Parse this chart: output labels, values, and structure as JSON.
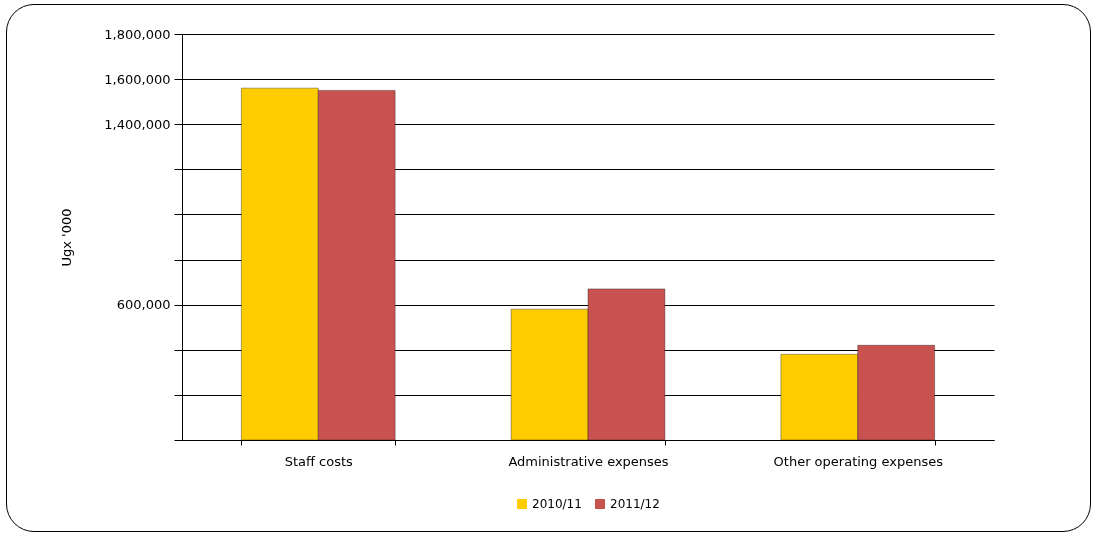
{
  "chart_data": {
    "type": "bar",
    "ylabel": "Ugx '000",
    "categories": [
      "Staff costs",
      "Administrative expenses",
      "Other operating expenses"
    ],
    "series": [
      {
        "name": "2010/11",
        "color": "#ffcc00",
        "values": [
          1560000,
          580000,
          380000
        ]
      },
      {
        "name": "2011/12",
        "color": "#c85250",
        "values": [
          1550000,
          670000,
          420000
        ]
      }
    ],
    "ylim": [
      0,
      1800000
    ],
    "yticks": [
      {
        "value": 0,
        "label": null
      },
      {
        "value": 200000,
        "label": null
      },
      {
        "value": 400000,
        "label": null
      },
      {
        "value": 600000,
        "label": "600,000"
      },
      {
        "value": 800000,
        "label": null
      },
      {
        "value": 1000000,
        "label": null
      },
      {
        "value": 1200000,
        "label": null
      },
      {
        "value": 1400000,
        "label": "1,400,000"
      },
      {
        "value": 1600000,
        "label": "1,600,000"
      },
      {
        "value": 1800000,
        "label": "1,800,000"
      }
    ],
    "grid": "y",
    "legend": "bottom"
  }
}
